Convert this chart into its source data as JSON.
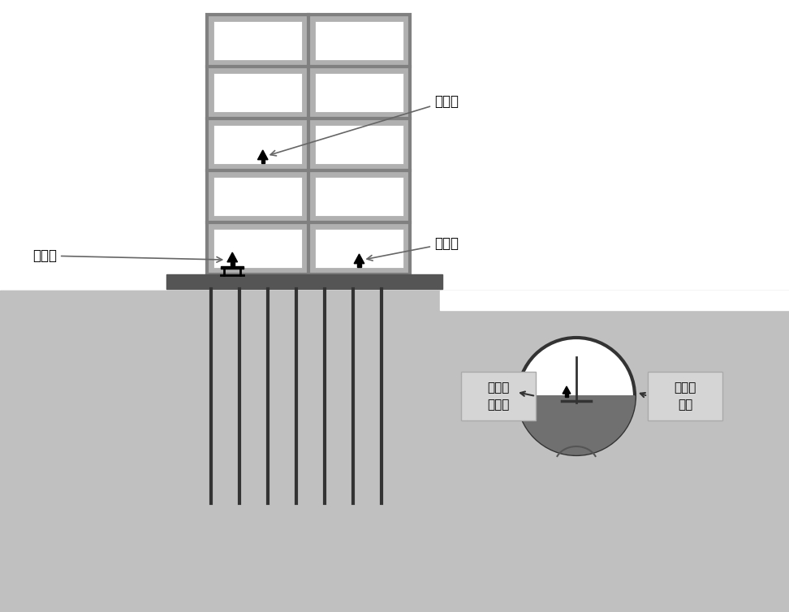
{
  "bg_color": "#c0c0c0",
  "white": "#ffffff",
  "black": "#000000",
  "dark_gray": "#333333",
  "frame_gray": "#808080",
  "med_gray": "#999999",
  "light_gray": "#c8c8c8",
  "slab_color": "#555555",
  "label_chuanganqi_top": "传感器",
  "label_chuanganqi_left": "传感器",
  "label_chuanganqi_right": "传感器",
  "label_hole_sensor": "隧道壁\n传感器",
  "label_impact": "脉冲锤\n击力"
}
